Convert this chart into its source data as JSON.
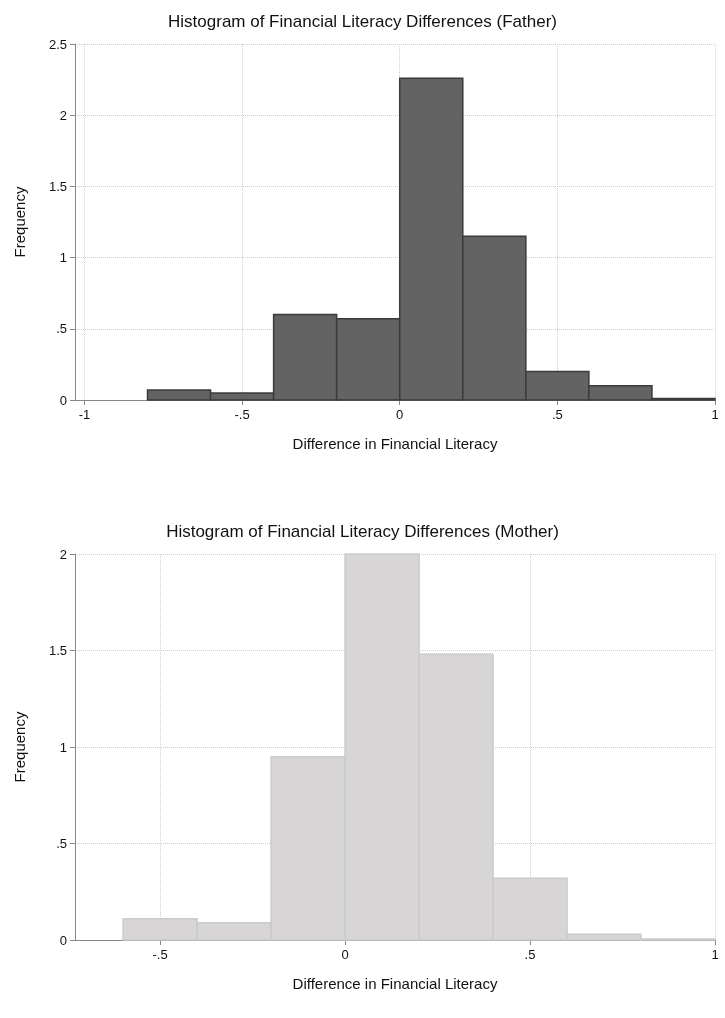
{
  "chart_data": [
    {
      "type": "histogram",
      "title": "Histogram of Financial Literacy Differences (Father)",
      "xlabel": "Difference in Financial Literacy",
      "ylabel": "Frequency",
      "color": "#636363",
      "bins": [
        -0.8,
        -0.6,
        -0.4,
        -0.2,
        0,
        0.2,
        0.4,
        0.6,
        0.8,
        1
      ],
      "values": [
        0.07,
        0.05,
        0.6,
        0.57,
        2.26,
        1.15,
        0.2,
        0.1,
        0.01
      ],
      "xlim": [
        -1.03,
        1
      ],
      "ylim": [
        0,
        2.5
      ],
      "xticks": [
        {
          "value": -1,
          "label": "-1"
        },
        {
          "value": -0.5,
          "label": "-.5"
        },
        {
          "value": 0,
          "label": "0"
        },
        {
          "value": 0.5,
          "label": ".5"
        },
        {
          "value": 1,
          "label": "1"
        }
      ],
      "yticks": [
        {
          "value": 0,
          "label": "0"
        },
        {
          "value": 0.5,
          "label": ".5"
        },
        {
          "value": 1,
          "label": "1"
        },
        {
          "value": 1.5,
          "label": "1.5"
        },
        {
          "value": 2,
          "label": "2"
        },
        {
          "value": 2.5,
          "label": "2.5"
        }
      ],
      "grid": true
    },
    {
      "type": "histogram",
      "title": "Histogram of Financial Literacy Differences (Mother)",
      "xlabel": "Difference in Financial Literacy",
      "ylabel": "Frequency",
      "color": "#d7d5d6",
      "bins": [
        -0.6,
        -0.4,
        -0.2,
        0,
        0.2,
        0.4,
        0.6,
        0.8,
        1
      ],
      "values": [
        0.11,
        0.09,
        0.95,
        2.0,
        1.48,
        0.32,
        0.03,
        0.005
      ],
      "xlim": [
        -0.73,
        1
      ],
      "ylim": [
        0,
        2
      ],
      "xticks": [
        {
          "value": -0.5,
          "label": "-.5"
        },
        {
          "value": 0,
          "label": "0"
        },
        {
          "value": 0.5,
          "label": ".5"
        },
        {
          "value": 1,
          "label": "1"
        }
      ],
      "yticks": [
        {
          "value": 0,
          "label": "0"
        },
        {
          "value": 0.5,
          "label": ".5"
        },
        {
          "value": 1,
          "label": "1"
        },
        {
          "value": 1.5,
          "label": "1.5"
        },
        {
          "value": 2,
          "label": "2"
        }
      ],
      "grid": true
    }
  ]
}
